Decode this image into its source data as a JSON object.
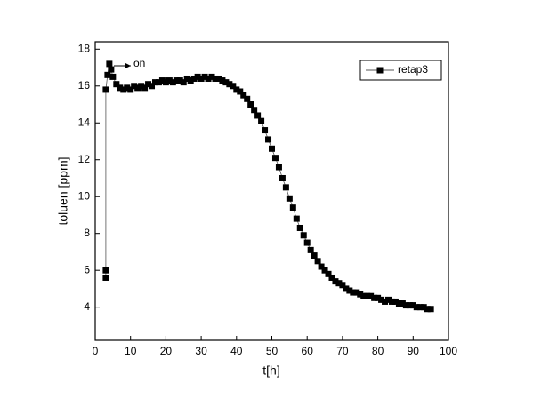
{
  "chart_data": {
    "type": "line",
    "x_label": "t[h]",
    "y_label": "toluen [ppm]",
    "annotation": "on",
    "x": [
      3,
      3,
      3,
      3.5,
      4,
      4.5,
      5,
      6,
      7,
      8,
      9,
      10,
      11,
      12,
      13,
      14,
      15,
      16,
      17,
      18,
      19,
      20,
      21,
      22,
      23,
      24,
      25,
      26,
      27,
      28,
      29,
      30,
      31,
      32,
      33,
      34,
      35,
      36,
      37,
      38,
      39,
      40,
      41,
      42,
      43,
      44,
      45,
      46,
      47,
      48,
      49,
      50,
      51,
      52,
      53,
      54,
      55,
      56,
      57,
      58,
      59,
      60,
      61,
      62,
      63,
      64,
      65,
      66,
      67,
      68,
      69,
      70,
      71,
      72,
      73,
      74,
      75,
      76,
      77,
      78,
      79,
      80,
      81,
      82,
      83,
      84,
      85,
      86,
      87,
      88,
      89,
      90,
      91,
      92,
      93,
      94,
      95
    ],
    "series": [
      {
        "name": "retap3",
        "color": "#000000",
        "values": [
          5.6,
          6.0,
          15.8,
          16.6,
          17.2,
          16.9,
          16.5,
          16.1,
          15.9,
          15.8,
          15.9,
          15.8,
          16.0,
          15.9,
          16.0,
          15.9,
          16.1,
          16.0,
          16.2,
          16.2,
          16.3,
          16.2,
          16.3,
          16.2,
          16.3,
          16.3,
          16.2,
          16.4,
          16.3,
          16.4,
          16.5,
          16.4,
          16.5,
          16.4,
          16.5,
          16.4,
          16.4,
          16.3,
          16.2,
          16.1,
          16.0,
          15.8,
          15.7,
          15.5,
          15.3,
          15.0,
          14.7,
          14.4,
          14.1,
          13.6,
          13.1,
          12.6,
          12.1,
          11.6,
          11.0,
          10.5,
          9.9,
          9.4,
          8.8,
          8.3,
          7.9,
          7.5,
          7.1,
          6.8,
          6.5,
          6.2,
          6.0,
          5.8,
          5.6,
          5.4,
          5.3,
          5.2,
          5.0,
          4.9,
          4.8,
          4.8,
          4.7,
          4.6,
          4.6,
          4.6,
          4.5,
          4.5,
          4.4,
          4.3,
          4.4,
          4.3,
          4.3,
          4.2,
          4.2,
          4.1,
          4.1,
          4.1,
          4.0,
          4.0,
          4.0,
          3.9,
          3.9
        ]
      }
    ],
    "xlim": [
      0,
      100
    ],
    "xticks": [
      0,
      10,
      20,
      30,
      40,
      50,
      60,
      70,
      80,
      90,
      100
    ],
    "ylim": [
      2.2,
      18.4
    ],
    "yticks": [
      4,
      6,
      8,
      10,
      12,
      14,
      16,
      18
    ],
    "legend": "top-right",
    "markers": "square"
  }
}
